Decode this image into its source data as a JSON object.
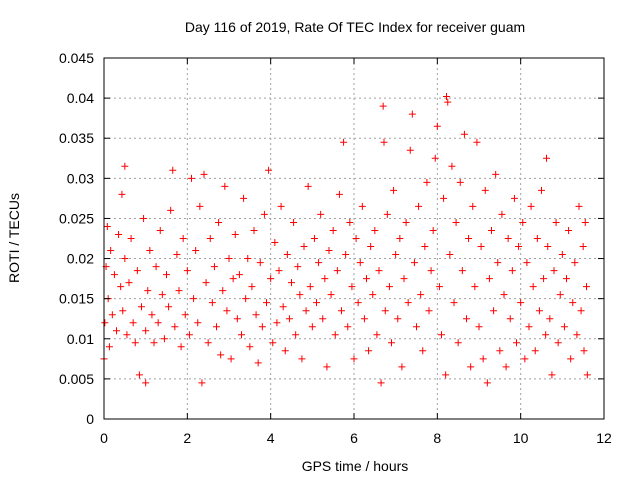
{
  "chart_data": {
    "type": "scatter",
    "title": "Day 116 of 2019, Rate Of TEC Index for receiver guam",
    "xlabel": "GPS time / hours",
    "ylabel": "ROTI / TECUs",
    "xlim": [
      0,
      12
    ],
    "ylim": [
      0,
      0.045
    ],
    "x_ticks": [
      0,
      2,
      4,
      6,
      8,
      10,
      12
    ],
    "x_tick_labels": [
      "0",
      "2",
      "4",
      "6",
      "8",
      "10",
      "12"
    ],
    "y_ticks": [
      0,
      0.005,
      0.01,
      0.015,
      0.02,
      0.025,
      0.03,
      0.035,
      0.04,
      0.045
    ],
    "y_tick_labels": [
      "0",
      "0.005",
      "0.01",
      "0.015",
      "0.02",
      "0.025",
      "0.03",
      "0.035",
      "0.04",
      "0.045"
    ],
    "grid": true,
    "marker": "+",
    "marker_color": "#ff0000",
    "series": [
      {
        "name": "ROTI",
        "points": [
          [
            0.0,
            0.0075
          ],
          [
            0.02,
            0.012
          ],
          [
            0.05,
            0.019
          ],
          [
            0.08,
            0.024
          ],
          [
            0.1,
            0.015
          ],
          [
            0.13,
            0.009
          ],
          [
            0.16,
            0.021
          ],
          [
            0.2,
            0.013
          ],
          [
            0.25,
            0.018
          ],
          [
            0.3,
            0.011
          ],
          [
            0.35,
            0.023
          ],
          [
            0.4,
            0.0165
          ],
          [
            0.43,
            0.028
          ],
          [
            0.45,
            0.0135
          ],
          [
            0.5,
            0.02
          ],
          [
            0.55,
            0.0105
          ],
          [
            0.5,
            0.0315
          ],
          [
            0.6,
            0.017
          ],
          [
            0.65,
            0.0225
          ],
          [
            0.7,
            0.012
          ],
          [
            0.75,
            0.0095
          ],
          [
            0.8,
            0.0185
          ],
          [
            0.85,
            0.0055
          ],
          [
            0.9,
            0.014
          ],
          [
            0.95,
            0.025
          ],
          [
            1.0,
            0.011
          ],
          [
            1.0,
            0.0045
          ],
          [
            1.05,
            0.016
          ],
          [
            1.1,
            0.021
          ],
          [
            1.15,
            0.013
          ],
          [
            1.2,
            0.0095
          ],
          [
            1.25,
            0.019
          ],
          [
            1.3,
            0.012
          ],
          [
            1.35,
            0.0235
          ],
          [
            1.4,
            0.0155
          ],
          [
            1.45,
            0.01
          ],
          [
            1.5,
            0.018
          ],
          [
            1.55,
            0.014
          ],
          [
            1.6,
            0.026
          ],
          [
            1.65,
            0.031
          ],
          [
            1.7,
            0.0115
          ],
          [
            1.75,
            0.0205
          ],
          [
            1.8,
            0.016
          ],
          [
            1.85,
            0.009
          ],
          [
            1.9,
            0.0225
          ],
          [
            1.95,
            0.013
          ],
          [
            2.0,
            0.0185
          ],
          [
            2.05,
            0.0105
          ],
          [
            2.1,
            0.03
          ],
          [
            2.15,
            0.015
          ],
          [
            2.2,
            0.021
          ],
          [
            2.25,
            0.012
          ],
          [
            2.3,
            0.0265
          ],
          [
            2.35,
            0.0045
          ],
          [
            2.4,
            0.0305
          ],
          [
            2.45,
            0.017
          ],
          [
            2.5,
            0.0095
          ],
          [
            2.55,
            0.0225
          ],
          [
            2.6,
            0.0145
          ],
          [
            2.65,
            0.019
          ],
          [
            2.7,
            0.0115
          ],
          [
            2.75,
            0.0245
          ],
          [
            2.8,
            0.008
          ],
          [
            2.85,
            0.016
          ],
          [
            2.9,
            0.029
          ],
          [
            2.95,
            0.0135
          ],
          [
            3.0,
            0.02
          ],
          [
            3.05,
            0.0075
          ],
          [
            3.1,
            0.0175
          ],
          [
            3.15,
            0.023
          ],
          [
            3.2,
            0.0125
          ],
          [
            3.25,
            0.018
          ],
          [
            3.3,
            0.0105
          ],
          [
            3.35,
            0.0275
          ],
          [
            3.4,
            0.015
          ],
          [
            3.45,
            0.02
          ],
          [
            3.5,
            0.009
          ],
          [
            3.55,
            0.0165
          ],
          [
            3.6,
            0.0235
          ],
          [
            3.65,
            0.013
          ],
          [
            3.7,
            0.007
          ],
          [
            3.75,
            0.0195
          ],
          [
            3.8,
            0.0115
          ],
          [
            3.85,
            0.0255
          ],
          [
            3.9,
            0.0145
          ],
          [
            3.95,
            0.031
          ],
          [
            4.0,
            0.0175
          ],
          [
            4.05,
            0.0095
          ],
          [
            4.1,
            0.022
          ],
          [
            4.15,
            0.012
          ],
          [
            4.2,
            0.0185
          ],
          [
            4.25,
            0.0265
          ],
          [
            4.3,
            0.014
          ],
          [
            4.35,
            0.0085
          ],
          [
            4.4,
            0.0205
          ],
          [
            4.45,
            0.0125
          ],
          [
            4.5,
            0.017
          ],
          [
            4.55,
            0.0245
          ],
          [
            4.6,
            0.0105
          ],
          [
            4.65,
            0.019
          ],
          [
            4.7,
            0.0155
          ],
          [
            4.75,
            0.0075
          ],
          [
            4.8,
            0.0215
          ],
          [
            4.85,
            0.0135
          ],
          [
            4.9,
            0.029
          ],
          [
            4.95,
            0.0165
          ],
          [
            5.0,
            0.0115
          ],
          [
            5.05,
            0.0225
          ],
          [
            5.1,
            0.0145
          ],
          [
            5.15,
            0.0195
          ],
          [
            5.2,
            0.0255
          ],
          [
            5.25,
            0.0125
          ],
          [
            5.3,
            0.0175
          ],
          [
            5.35,
            0.0065
          ],
          [
            5.4,
            0.021
          ],
          [
            5.45,
            0.0155
          ],
          [
            5.5,
            0.0235
          ],
          [
            5.55,
            0.0105
          ],
          [
            5.6,
            0.0185
          ],
          [
            5.65,
            0.028
          ],
          [
            5.7,
            0.0135
          ],
          [
            5.75,
            0.0345
          ],
          [
            5.8,
            0.0205
          ],
          [
            5.85,
            0.0115
          ],
          [
            5.9,
            0.0245
          ],
          [
            5.95,
            0.0165
          ],
          [
            6.0,
            0.0075
          ],
          [
            6.05,
            0.0225
          ],
          [
            6.1,
            0.0145
          ],
          [
            6.15,
            0.0195
          ],
          [
            6.2,
            0.0265
          ],
          [
            6.25,
            0.0125
          ],
          [
            6.3,
            0.0175
          ],
          [
            6.35,
            0.0085
          ],
          [
            6.4,
            0.0215
          ],
          [
            6.45,
            0.0155
          ],
          [
            6.5,
            0.0235
          ],
          [
            6.55,
            0.0105
          ],
          [
            6.6,
            0.0185
          ],
          [
            6.65,
            0.0045
          ],
          [
            6.7,
            0.039
          ],
          [
            6.72,
            0.0345
          ],
          [
            6.75,
            0.0135
          ],
          [
            6.8,
            0.0255
          ],
          [
            6.85,
            0.0165
          ],
          [
            6.9,
            0.0095
          ],
          [
            6.95,
            0.0285
          ],
          [
            7.0,
            0.0205
          ],
          [
            7.05,
            0.0125
          ],
          [
            7.1,
            0.0225
          ],
          [
            7.15,
            0.0065
          ],
          [
            7.2,
            0.0175
          ],
          [
            7.25,
            0.0245
          ],
          [
            7.3,
            0.0145
          ],
          [
            7.35,
            0.0335
          ],
          [
            7.4,
            0.038
          ],
          [
            7.45,
            0.0195
          ],
          [
            7.5,
            0.0115
          ],
          [
            7.55,
            0.0265
          ],
          [
            7.6,
            0.0155
          ],
          [
            7.65,
            0.0085
          ],
          [
            7.7,
            0.0215
          ],
          [
            7.75,
            0.0295
          ],
          [
            7.8,
            0.0135
          ],
          [
            7.85,
            0.0185
          ],
          [
            7.9,
            0.0235
          ],
          [
            7.95,
            0.0325
          ],
          [
            8.0,
            0.0365
          ],
          [
            8.05,
            0.0165
          ],
          [
            8.1,
            0.0105
          ],
          [
            8.15,
            0.0275
          ],
          [
            8.2,
            0.0055
          ],
          [
            8.22,
            0.0402
          ],
          [
            8.25,
            0.0395
          ],
          [
            8.3,
            0.0205
          ],
          [
            8.35,
            0.0315
          ],
          [
            8.4,
            0.0145
          ],
          [
            8.45,
            0.0245
          ],
          [
            8.5,
            0.0095
          ],
          [
            8.55,
            0.0295
          ],
          [
            8.6,
            0.0185
          ],
          [
            8.65,
            0.0355
          ],
          [
            8.7,
            0.0125
          ],
          [
            8.75,
            0.0225
          ],
          [
            8.8,
            0.0065
          ],
          [
            8.85,
            0.0265
          ],
          [
            8.9,
            0.0165
          ],
          [
            8.95,
            0.0345
          ],
          [
            9.0,
            0.0115
          ],
          [
            9.05,
            0.0215
          ],
          [
            9.1,
            0.0075
          ],
          [
            9.15,
            0.0285
          ],
          [
            9.2,
            0.0045
          ],
          [
            9.25,
            0.0175
          ],
          [
            9.3,
            0.0235
          ],
          [
            9.35,
            0.0135
          ],
          [
            9.4,
            0.0305
          ],
          [
            9.45,
            0.0195
          ],
          [
            9.5,
            0.0085
          ],
          [
            9.55,
            0.0255
          ],
          [
            9.6,
            0.0155
          ],
          [
            9.65,
            0.0065
          ],
          [
            9.7,
            0.0225
          ],
          [
            9.75,
            0.0125
          ],
          [
            9.8,
            0.0185
          ],
          [
            9.85,
            0.0275
          ],
          [
            9.9,
            0.0095
          ],
          [
            9.95,
            0.0215
          ],
          [
            10.0,
            0.0145
          ],
          [
            10.05,
            0.0245
          ],
          [
            10.1,
            0.0075
          ],
          [
            10.15,
            0.0195
          ],
          [
            10.2,
            0.0115
          ],
          [
            10.25,
            0.0265
          ],
          [
            10.3,
            0.0165
          ],
          [
            10.35,
            0.0085
          ],
          [
            10.4,
            0.0225
          ],
          [
            10.45,
            0.0135
          ],
          [
            10.5,
            0.0285
          ],
          [
            10.55,
            0.0175
          ],
          [
            10.6,
            0.0105
          ],
          [
            10.62,
            0.0325
          ],
          [
            10.65,
            0.0215
          ],
          [
            10.7,
            0.0125
          ],
          [
            10.75,
            0.0055
          ],
          [
            10.8,
            0.0185
          ],
          [
            10.85,
            0.0245
          ],
          [
            10.9,
            0.0095
          ],
          [
            10.95,
            0.0155
          ],
          [
            11.0,
            0.0205
          ],
          [
            11.05,
            0.0115
          ],
          [
            11.1,
            0.0175
          ],
          [
            11.15,
            0.0235
          ],
          [
            11.2,
            0.0075
          ],
          [
            11.25,
            0.0145
          ],
          [
            11.3,
            0.0195
          ],
          [
            11.35,
            0.0105
          ],
          [
            11.4,
            0.0265
          ],
          [
            11.45,
            0.0135
          ],
          [
            11.5,
            0.0215
          ],
          [
            11.52,
            0.0085
          ],
          [
            11.55,
            0.0245
          ],
          [
            11.58,
            0.0165
          ],
          [
            11.6,
            0.0055
          ]
        ]
      }
    ]
  }
}
